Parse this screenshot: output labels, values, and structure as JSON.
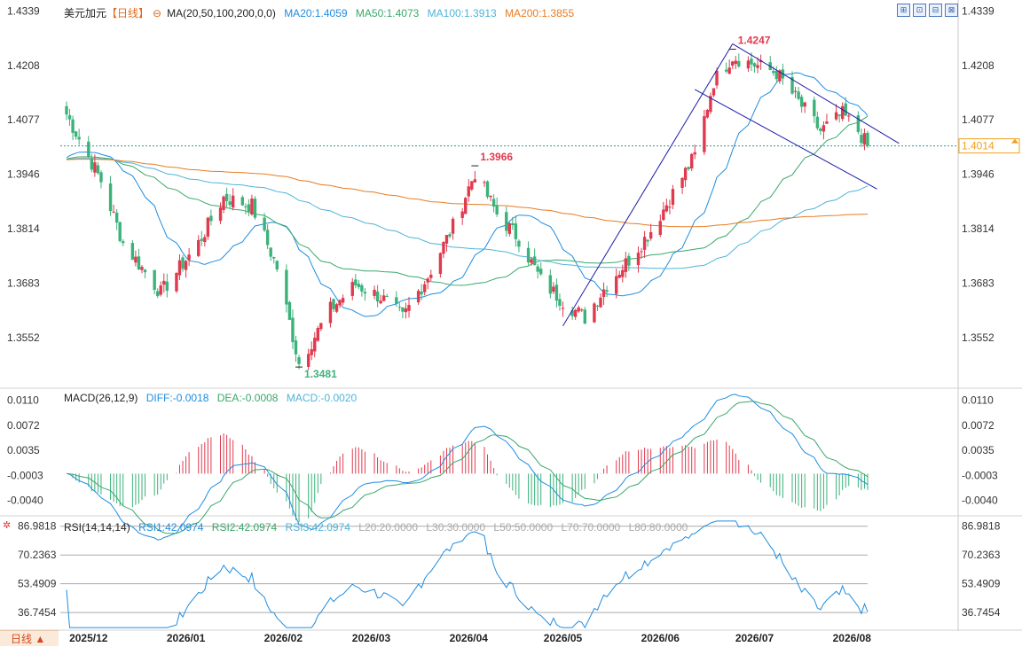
{
  "header": {
    "symbol": "美元加元",
    "period": "【日线】",
    "ma_label": "MA(20,50,100,200,0,0)",
    "ma20": "MA20:1.4059",
    "ma50": "MA50:1.4073",
    "ma100": "MA100:1.3913",
    "ma200": "MA200:1.3855"
  },
  "macd_header": {
    "label": "MACD(26,12,9)",
    "diff": "DIFF:-0.0018",
    "dea": "DEA:-0.0008",
    "macd": "MACD:-0.0020"
  },
  "rsi_header": {
    "label": "RSI(14,14,14)",
    "rsi1": "RSI1:42.0974",
    "rsi2": "RSI2:42.0974",
    "rsi3": "RSI3:42.0974",
    "l20": "L20:20.0000",
    "l30": "L30:30.0000",
    "l50": "L50:50.0000",
    "l70": "L70:70.0000",
    "l80": "L80:80.0000"
  },
  "bottom_tab": "日线 ▲",
  "colors": {
    "up": "#e03a4e",
    "down": "#3bb27a",
    "ma20": "#1f8de0",
    "ma50": "#3aa86a",
    "ma100": "#4fb4d8",
    "ma200": "#e87b22",
    "trend": "#1b1ba8",
    "current": "#f0a01e",
    "grid": "#bfbfbf"
  },
  "chart_data": [
    {
      "type": "candlestick",
      "title": "美元加元【日线】",
      "ylim": [
        1.343,
        1.434
      ],
      "y_ticks": [
        "1.4339",
        "1.4208",
        "1.4077",
        "1.3946",
        "1.3814",
        "1.3683",
        "1.3552"
      ],
      "x_ticks": [
        "2025/12",
        "2026/01",
        "2026/02",
        "2026/03",
        "2026/04",
        "2026/05",
        "2026/06",
        "2026/07",
        "2026/08"
      ],
      "current_price": "1.4014",
      "annotations": [
        {
          "label": "1.4247",
          "value": 1.4247,
          "color": "up"
        },
        {
          "label": "1.3966",
          "value": 1.3966,
          "color": "up"
        },
        {
          "label": "1.3481",
          "value": 1.3481,
          "color": "down"
        }
      ],
      "key_points": [
        {
          "date": "2025/11/24",
          "close": 1.409
        },
        {
          "date": "2025/12/05",
          "close": 1.393
        },
        {
          "date": "2025/12/12",
          "close": 1.378
        },
        {
          "date": "2025/12/24",
          "close": 1.366
        },
        {
          "date": "2026/01/05",
          "close": 1.378
        },
        {
          "date": "2026/01/13",
          "close": 1.389
        },
        {
          "date": "2026/01/22",
          "close": 1.387
        },
        {
          "date": "2026/01/30",
          "close": 1.372
        },
        {
          "date": "2026/02/06",
          "close": 1.349
        },
        {
          "date": "2026/02/16",
          "close": 1.362
        },
        {
          "date": "2026/02/24",
          "close": 1.368
        },
        {
          "date": "2026/03/04",
          "close": 1.365
        },
        {
          "date": "2026/03/11",
          "close": 1.36
        },
        {
          "date": "2026/03/19",
          "close": 1.37
        },
        {
          "date": "2026/03/27",
          "close": 1.382
        },
        {
          "date": "2026/04/03",
          "close": 1.395
        },
        {
          "date": "2026/04/10",
          "close": 1.385
        },
        {
          "date": "2026/04/17",
          "close": 1.379
        },
        {
          "date": "2026/04/24",
          "close": 1.369
        },
        {
          "date": "2026/05/01",
          "close": 1.364
        },
        {
          "date": "2026/05/08",
          "close": 1.36
        },
        {
          "date": "2026/05/15",
          "close": 1.368
        },
        {
          "date": "2026/05/22",
          "close": 1.374
        },
        {
          "date": "2026/05/29",
          "close": 1.381
        },
        {
          "date": "2026/06/05",
          "close": 1.39
        },
        {
          "date": "2026/06/12",
          "close": 1.399
        },
        {
          "date": "2026/06/18",
          "close": 1.417
        },
        {
          "date": "2026/06/24",
          "close": 1.423
        },
        {
          "date": "2026/07/01",
          "close": 1.421
        },
        {
          "date": "2026/07/08",
          "close": 1.419
        },
        {
          "date": "2026/07/15",
          "close": 1.412
        },
        {
          "date": "2026/07/22",
          "close": 1.405
        },
        {
          "date": "2026/07/29",
          "close": 1.409
        },
        {
          "date": "2026/08/03",
          "close": 1.405
        },
        {
          "date": "2026/08/06",
          "close": 1.4014
        }
      ],
      "ma_series": [
        {
          "name": "MA20",
          "value": 1.4059
        },
        {
          "name": "MA50",
          "value": 1.4073
        },
        {
          "name": "MA100",
          "value": 1.3913
        },
        {
          "name": "MA200",
          "value": 1.3855
        }
      ]
    },
    {
      "type": "line",
      "title": "MACD(26,12,9)",
      "ylim": [
        -0.0063,
        0.0125
      ],
      "y_ticks": [
        "0.0110",
        "0.0072",
        "0.0035",
        "-0.0003",
        "-0.0040"
      ],
      "series": [
        {
          "name": "DIFF",
          "last": -0.0018
        },
        {
          "name": "DEA",
          "last": -0.0008
        },
        {
          "name": "MACD",
          "last": -0.002
        }
      ]
    },
    {
      "type": "line",
      "title": "RSI(14,14,14)",
      "ylim": [
        27,
        92
      ],
      "y_ticks": [
        "86.9818",
        "70.2363",
        "53.4909",
        "36.7454"
      ],
      "series": [
        {
          "name": "RSI1",
          "last": 42.0974
        },
        {
          "name": "RSI2",
          "last": 42.0974
        },
        {
          "name": "RSI3",
          "last": 42.0974
        }
      ]
    }
  ]
}
